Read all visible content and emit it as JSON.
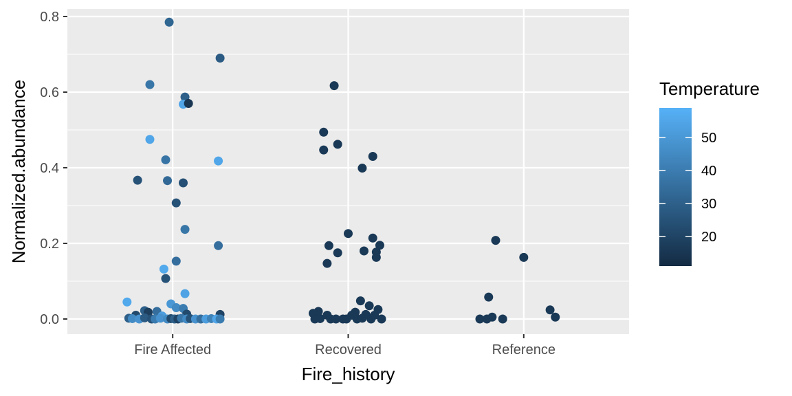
{
  "chart_data": {
    "type": "scatter",
    "title": "",
    "xlabel": "Fire_history",
    "ylabel": "Normalized.abundance",
    "categories": [
      "Fire Affected",
      "Recovered",
      "Reference"
    ],
    "ylim": [
      -0.04,
      0.82
    ],
    "y_ticks": [
      0.0,
      0.2,
      0.4,
      0.6,
      0.8
    ],
    "y_tick_labels": [
      "0.0",
      "0.2",
      "0.4",
      "0.6",
      "0.8"
    ],
    "grid": true,
    "jitter": true,
    "color": {
      "variable": "Temperature",
      "range": [
        11,
        59
      ],
      "low_color": "#132B43",
      "high_color": "#56B1F7",
      "ticks": [
        20,
        30,
        40,
        50
      ],
      "tick_labels": [
        "20",
        "30",
        "40",
        "50"
      ]
    },
    "legend_position": "right",
    "points": [
      {
        "category": "Fire Affected",
        "x": -0.02,
        "y": 0.785,
        "temp": 32
      },
      {
        "category": "Fire Affected",
        "x": 0.27,
        "y": 0.69,
        "temp": 28
      },
      {
        "category": "Fire Affected",
        "x": -0.13,
        "y": 0.62,
        "temp": 38
      },
      {
        "category": "Fire Affected",
        "x": 0.07,
        "y": 0.587,
        "temp": 30
      },
      {
        "category": "Fire Affected",
        "x": 0.06,
        "y": 0.568,
        "temp": 55
      },
      {
        "category": "Fire Affected",
        "x": 0.09,
        "y": 0.57,
        "temp": 15
      },
      {
        "category": "Fire Affected",
        "x": -0.13,
        "y": 0.475,
        "temp": 55
      },
      {
        "category": "Fire Affected",
        "x": -0.04,
        "y": 0.421,
        "temp": 37
      },
      {
        "category": "Fire Affected",
        "x": 0.26,
        "y": 0.418,
        "temp": 55
      },
      {
        "category": "Fire Affected",
        "x": -0.2,
        "y": 0.367,
        "temp": 25
      },
      {
        "category": "Fire Affected",
        "x": -0.03,
        "y": 0.366,
        "temp": 33
      },
      {
        "category": "Fire Affected",
        "x": 0.06,
        "y": 0.36,
        "temp": 24
      },
      {
        "category": "Fire Affected",
        "x": 0.02,
        "y": 0.307,
        "temp": 25
      },
      {
        "category": "Fire Affected",
        "x": 0.07,
        "y": 0.237,
        "temp": 38
      },
      {
        "category": "Fire Affected",
        "x": 0.26,
        "y": 0.194,
        "temp": 35
      },
      {
        "category": "Fire Affected",
        "x": 0.02,
        "y": 0.153,
        "temp": 35
      },
      {
        "category": "Fire Affected",
        "x": -0.05,
        "y": 0.132,
        "temp": 56
      },
      {
        "category": "Fire Affected",
        "x": -0.04,
        "y": 0.107,
        "temp": 25
      },
      {
        "category": "Fire Affected",
        "x": 0.07,
        "y": 0.067,
        "temp": 54
      },
      {
        "category": "Fire Affected",
        "x": -0.26,
        "y": 0.045,
        "temp": 56
      },
      {
        "category": "Fire Affected",
        "x": -0.01,
        "y": 0.04,
        "temp": 50
      },
      {
        "category": "Fire Affected",
        "x": 0.02,
        "y": 0.03,
        "temp": 45
      },
      {
        "category": "Fire Affected",
        "x": 0.06,
        "y": 0.028,
        "temp": 40
      },
      {
        "category": "Fire Affected",
        "x": -0.16,
        "y": 0.022,
        "temp": 30
      },
      {
        "category": "Fire Affected",
        "x": -0.14,
        "y": 0.018,
        "temp": 18
      },
      {
        "category": "Fire Affected",
        "x": -0.09,
        "y": 0.02,
        "temp": 35
      },
      {
        "category": "Fire Affected",
        "x": 0.08,
        "y": 0.013,
        "temp": 22
      },
      {
        "category": "Fire Affected",
        "x": 0.27,
        "y": 0.012,
        "temp": 20
      },
      {
        "category": "Fire Affected",
        "x": -0.21,
        "y": 0.01,
        "temp": 22
      },
      {
        "category": "Fire Affected",
        "x": -0.06,
        "y": 0.008,
        "temp": 52
      },
      {
        "category": "Fire Affected",
        "x": -0.25,
        "y": 0.002,
        "temp": 30
      },
      {
        "category": "Fire Affected",
        "x": -0.23,
        "y": 0.001,
        "temp": 45
      },
      {
        "category": "Fire Affected",
        "x": -0.19,
        "y": 0.0,
        "temp": 48
      },
      {
        "category": "Fire Affected",
        "x": -0.16,
        "y": 0.003,
        "temp": 28
      },
      {
        "category": "Fire Affected",
        "x": -0.12,
        "y": 0.0,
        "temp": 25
      },
      {
        "category": "Fire Affected",
        "x": -0.1,
        "y": 0.0,
        "temp": 40
      },
      {
        "category": "Fire Affected",
        "x": -0.07,
        "y": 0.002,
        "temp": 48
      },
      {
        "category": "Fire Affected",
        "x": -0.03,
        "y": 0.0,
        "temp": 45
      },
      {
        "category": "Fire Affected",
        "x": -0.01,
        "y": 0.001,
        "temp": 22
      },
      {
        "category": "Fire Affected",
        "x": 0.01,
        "y": 0.0,
        "temp": 30
      },
      {
        "category": "Fire Affected",
        "x": 0.03,
        "y": 0.0,
        "temp": 20
      },
      {
        "category": "Fire Affected",
        "x": 0.05,
        "y": 0.002,
        "temp": 38
      },
      {
        "category": "Fire Affected",
        "x": 0.08,
        "y": 0.0,
        "temp": 45
      },
      {
        "category": "Fire Affected",
        "x": 0.1,
        "y": 0.001,
        "temp": 25
      },
      {
        "category": "Fire Affected",
        "x": 0.13,
        "y": 0.0,
        "temp": 48
      },
      {
        "category": "Fire Affected",
        "x": 0.16,
        "y": 0.0,
        "temp": 35
      },
      {
        "category": "Fire Affected",
        "x": 0.19,
        "y": 0.0,
        "temp": 52
      },
      {
        "category": "Fire Affected",
        "x": 0.22,
        "y": 0.001,
        "temp": 42
      },
      {
        "category": "Fire Affected",
        "x": 0.25,
        "y": 0.0,
        "temp": 55
      },
      {
        "category": "Fire Affected",
        "x": 0.27,
        "y": 0.0,
        "temp": 40
      },
      {
        "category": "Recovered",
        "x": -0.08,
        "y": 0.617,
        "temp": 16
      },
      {
        "category": "Recovered",
        "x": -0.14,
        "y": 0.494,
        "temp": 16
      },
      {
        "category": "Recovered",
        "x": -0.06,
        "y": 0.462,
        "temp": 16
      },
      {
        "category": "Recovered",
        "x": -0.14,
        "y": 0.447,
        "temp": 16
      },
      {
        "category": "Recovered",
        "x": 0.14,
        "y": 0.43,
        "temp": 16
      },
      {
        "category": "Recovered",
        "x": 0.08,
        "y": 0.399,
        "temp": 16
      },
      {
        "category": "Recovered",
        "x": 0.0,
        "y": 0.226,
        "temp": 16
      },
      {
        "category": "Recovered",
        "x": 0.14,
        "y": 0.214,
        "temp": 16
      },
      {
        "category": "Recovered",
        "x": -0.11,
        "y": 0.194,
        "temp": 16
      },
      {
        "category": "Recovered",
        "x": 0.18,
        "y": 0.195,
        "temp": 16
      },
      {
        "category": "Recovered",
        "x": 0.09,
        "y": 0.18,
        "temp": 16
      },
      {
        "category": "Recovered",
        "x": 0.16,
        "y": 0.177,
        "temp": 16
      },
      {
        "category": "Recovered",
        "x": -0.06,
        "y": 0.175,
        "temp": 16
      },
      {
        "category": "Recovered",
        "x": 0.16,
        "y": 0.163,
        "temp": 16
      },
      {
        "category": "Recovered",
        "x": -0.12,
        "y": 0.147,
        "temp": 16
      },
      {
        "category": "Recovered",
        "x": 0.07,
        "y": 0.048,
        "temp": 16
      },
      {
        "category": "Recovered",
        "x": 0.12,
        "y": 0.035,
        "temp": 16
      },
      {
        "category": "Recovered",
        "x": 0.17,
        "y": 0.025,
        "temp": 16
      },
      {
        "category": "Recovered",
        "x": -0.17,
        "y": 0.02,
        "temp": 16
      },
      {
        "category": "Recovered",
        "x": -0.2,
        "y": 0.015,
        "temp": 16
      },
      {
        "category": "Recovered",
        "x": 0.04,
        "y": 0.018,
        "temp": 16
      },
      {
        "category": "Recovered",
        "x": -0.12,
        "y": 0.01,
        "temp": 16
      },
      {
        "category": "Recovered",
        "x": 0.02,
        "y": 0.01,
        "temp": 16
      },
      {
        "category": "Recovered",
        "x": 0.1,
        "y": 0.012,
        "temp": 16
      },
      {
        "category": "Recovered",
        "x": 0.15,
        "y": 0.01,
        "temp": 16
      },
      {
        "category": "Recovered",
        "x": -0.19,
        "y": 0.0,
        "temp": 16
      },
      {
        "category": "Recovered",
        "x": -0.16,
        "y": 0.001,
        "temp": 16
      },
      {
        "category": "Recovered",
        "x": -0.1,
        "y": 0.0,
        "temp": 16
      },
      {
        "category": "Recovered",
        "x": -0.07,
        "y": 0.0,
        "temp": 16
      },
      {
        "category": "Recovered",
        "x": -0.03,
        "y": 0.0,
        "temp": 16
      },
      {
        "category": "Recovered",
        "x": -0.01,
        "y": 0.0,
        "temp": 16
      },
      {
        "category": "Recovered",
        "x": 0.05,
        "y": 0.0,
        "temp": 16
      },
      {
        "category": "Recovered",
        "x": 0.08,
        "y": 0.002,
        "temp": 16
      },
      {
        "category": "Recovered",
        "x": 0.13,
        "y": 0.0,
        "temp": 16
      },
      {
        "category": "Recovered",
        "x": 0.19,
        "y": 0.0,
        "temp": 16
      },
      {
        "category": "Reference",
        "x": -0.16,
        "y": 0.208,
        "temp": 16
      },
      {
        "category": "Reference",
        "x": 0.0,
        "y": 0.163,
        "temp": 16
      },
      {
        "category": "Reference",
        "x": -0.2,
        "y": 0.058,
        "temp": 16
      },
      {
        "category": "Reference",
        "x": 0.15,
        "y": 0.024,
        "temp": 16
      },
      {
        "category": "Reference",
        "x": -0.25,
        "y": 0.0,
        "temp": 16
      },
      {
        "category": "Reference",
        "x": -0.21,
        "y": 0.0,
        "temp": 16
      },
      {
        "category": "Reference",
        "x": -0.18,
        "y": 0.005,
        "temp": 16
      },
      {
        "category": "Reference",
        "x": -0.12,
        "y": 0.0,
        "temp": 16
      },
      {
        "category": "Reference",
        "x": 0.18,
        "y": 0.005,
        "temp": 16
      }
    ]
  }
}
